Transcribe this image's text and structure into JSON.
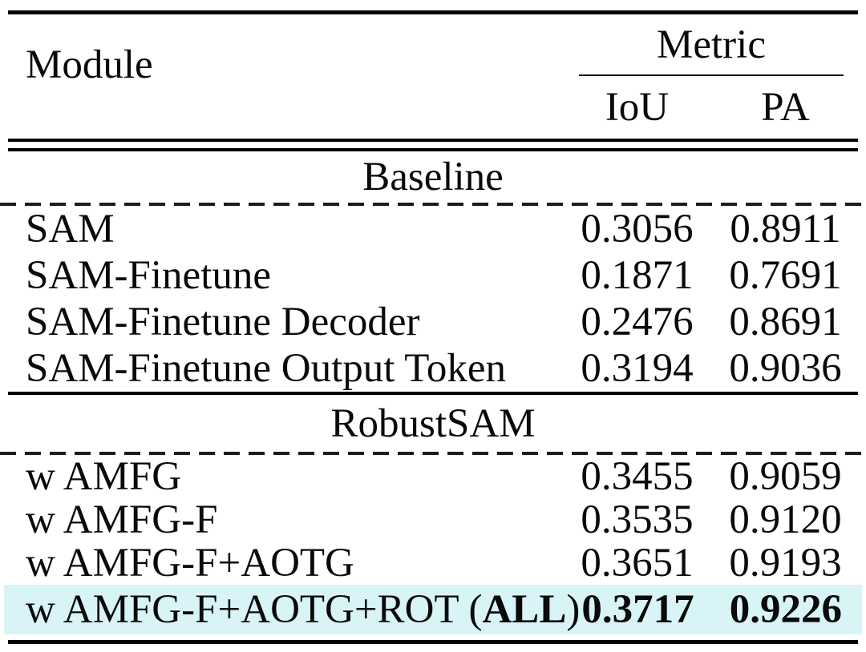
{
  "table": {
    "header": {
      "module_label": "Module",
      "metric_group_label": "Metric",
      "columns": [
        "IoU",
        "PA"
      ]
    },
    "sections": [
      {
        "title": "Baseline",
        "rows": [
          {
            "module": "SAM",
            "iou": "0.3056",
            "pa": "0.8911"
          },
          {
            "module": "SAM-Finetune",
            "iou": "0.1871",
            "pa": "0.7691"
          },
          {
            "module": "SAM-Finetune Decoder",
            "iou": "0.2476",
            "pa": "0.8691"
          },
          {
            "module": "SAM-Finetune Output Token",
            "iou": "0.3194",
            "pa": "0.9036"
          }
        ]
      },
      {
        "title": "RobustSAM",
        "rows": [
          {
            "module": "w AMFG",
            "iou": "0.3455",
            "pa": "0.9059"
          },
          {
            "module": "w AMFG-F",
            "iou": "0.3535",
            "pa": "0.9120"
          },
          {
            "module": "w AMFG-F+AOTG",
            "iou": "0.3651",
            "pa": "0.9193"
          },
          {
            "module_prefix": "w AMFG-F+AOTG+ROT (",
            "module_emphasis": "ALL",
            "module_suffix": ")",
            "iou": "0.3717",
            "pa": "0.9226"
          }
        ]
      }
    ],
    "highlight_color": "#d8f4f7"
  }
}
